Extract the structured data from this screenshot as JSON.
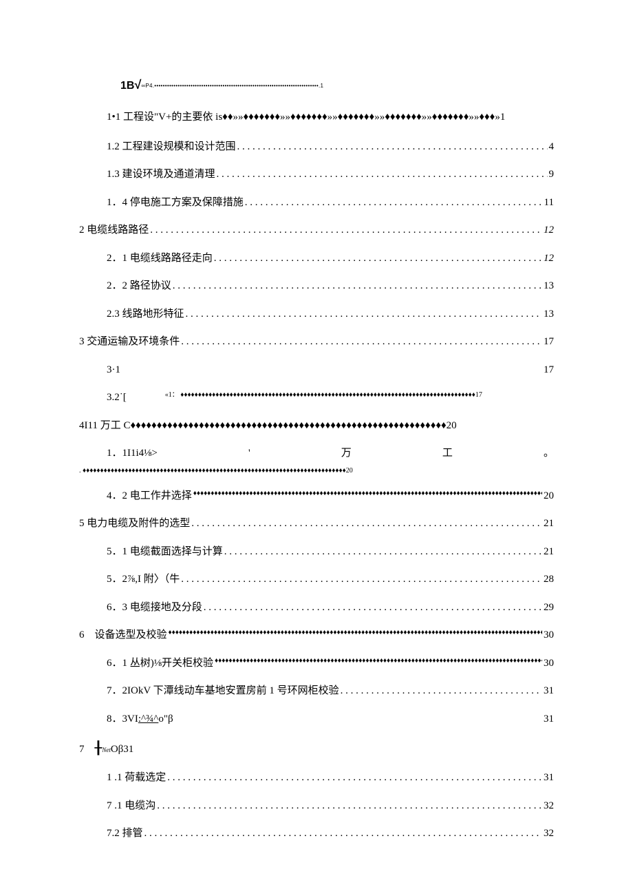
{
  "colors": {
    "text": "#000000",
    "background": "#ffffff"
  },
  "typography": {
    "font_family": "SimSun / serif",
    "base_size_pt": 11
  },
  "heading": {
    "prefix_bold": "1B",
    "radical": "√",
    "tail": "∞P4.•••••••••••••••••••••••••••••••••••••••••••••••••••••••••••••••••••••••••••••.1"
  },
  "toc": [
    {
      "id": "1.1",
      "indent": 1,
      "leader": "none",
      "label": "1•1 工程设\"V+的主要依 is♦♦»»♦♦♦♦♦♦♦»»♦♦♦♦♦♦♦»»♦♦♦♦♦♦♦»»♦♦♦♦♦♦♦»»♦♦♦♦♦♦♦»»♦♦♦»1",
      "page": ""
    },
    {
      "id": "1.2",
      "indent": 1,
      "leader": "dot",
      "label": "1.2 工程建设规模和设计范围",
      "page": "4"
    },
    {
      "id": "1.3",
      "indent": 1,
      "leader": "dot",
      "label": "1.3 建设环境及通道清理",
      "page": "9"
    },
    {
      "id": "1.4",
      "indent": 1,
      "leader": "dot",
      "label": "1．4 停电施工方案及保障措施",
      "page": "11"
    },
    {
      "id": "2",
      "indent": 0,
      "leader": "dot",
      "label": "2 电缆线路路径",
      "page": "12",
      "page_italic": true
    },
    {
      "id": "2.1",
      "indent": 1,
      "leader": "dot",
      "label": "2．1 电缆线路路径走向",
      "page": "12",
      "page_italic": true
    },
    {
      "id": "2.2",
      "indent": 1,
      "leader": "dot",
      "label": "2．2 路径协议",
      "page": "13"
    },
    {
      "id": "2.3",
      "indent": 1,
      "leader": "dot",
      "label": "2.3 线路地形特征",
      "page": "13"
    },
    {
      "id": "3",
      "indent": 0,
      "leader": "dot",
      "label": "3 交通运输及环境条件",
      "page": "17"
    },
    {
      "id": "3.1",
      "indent": 1,
      "leader": "space",
      "label": "3·1",
      "page": "17"
    },
    {
      "id": "3.2",
      "indent": 1,
      "leader": "dia_inline",
      "label": "3.2˙[",
      "mid_prefix": "«1：",
      "page": "17",
      "mid_fill": "♦♦♦♦♦♦♦♦♦♦♦♦♦♦♦♦♦♦♦♦♦♦♦♦♦♦♦♦♦♦♦♦♦♦♦♦♦♦♦♦♦♦♦♦♦♦♦♦♦♦♦♦♦♦♦♦♦♦♦♦♦♦♦♦♦♦♦♦♦♦♦♦♦♦♦♦♦♦♦♦♦♦♦♦"
    },
    {
      "id": "4",
      "indent": 0,
      "leader": "raw",
      "label": "4I11 万工 C♦♦♦♦♦♦♦♦♦♦♦♦♦♦♦♦♦♦♦♦♦♦♦♦♦♦♦♦♦♦♦♦♦♦♦♦♦♦♦♦♦♦♦♦♦♦♦♦♦♦♦♦♦♦♦♦♦♦♦♦20",
      "page": ""
    },
    {
      "id": "4.1",
      "indent": 1,
      "leader": "4_1",
      "top_segments": [
        "1．1I1i4⅛>",
        "'",
        "万",
        "工",
        "。"
      ],
      "bot": ". ♦♦♦♦♦♦♦♦♦♦♦♦♦♦♦♦♦♦♦♦♦♦♦♦♦♦♦♦♦♦♦♦♦♦♦♦♦♦♦♦♦♦♦♦♦♦♦♦♦♦♦♦♦♦♦♦♦♦♦♦♦♦♦♦♦♦♦♦♦♦♦♦♦♦♦20"
    },
    {
      "id": "4.2",
      "indent": 1,
      "leader": "dia",
      "label": "4．2 电工作井选择",
      "page": "20"
    },
    {
      "id": "5",
      "indent": 0,
      "leader": "dot",
      "label": "5 电力电缆及附件的选型",
      "page": "21"
    },
    {
      "id": "5.1",
      "indent": 1,
      "leader": "dot",
      "label": "5．1 电缆截面选择与计算",
      "page": "21"
    },
    {
      "id": "5.2",
      "indent": 1,
      "leader": "dot",
      "label": "5．2⅞,I 附〉（牛",
      "page": "28"
    },
    {
      "id": "5.3",
      "indent": 1,
      "leader": "dot",
      "label": "6．3 电缆接地及分段",
      "page": "29"
    },
    {
      "id": "6",
      "indent": 0,
      "leader": "dia",
      "label": "6 设备选型及校验",
      "page": "30"
    },
    {
      "id": "6.1",
      "indent": 1,
      "leader": "dia",
      "label": "6．1 丛树)⅛开关柜校验",
      "page": "30"
    },
    {
      "id": "6.2",
      "indent": 1,
      "leader": "dot",
      "label": "7．2IOkV 下潭线动车基地安置房前 1 号环网柜校验",
      "page": "31"
    },
    {
      "id": "6.3",
      "indent": 1,
      "leader": "space",
      "label_html": "8．3VI<span class=\"vi-under\">:^¾^</span>o\"β",
      "page": "31"
    },
    {
      "id": "7",
      "indent": 0,
      "leader": "7h",
      "label": "7 ⸸𝘕𝘦𝘵O̵β31",
      "page": ""
    },
    {
      "id": "7.a",
      "indent": 1,
      "leader": "dot",
      "label": "1  .1 荷载选定",
      "page": "31"
    },
    {
      "id": "7.b",
      "indent": 1,
      "leader": "dot",
      "label": "7  .1 电缆沟",
      "page": "32"
    },
    {
      "id": "7.2",
      "indent": 1,
      "leader": "dot",
      "label": "7.2 排管",
      "page": "32"
    }
  ]
}
